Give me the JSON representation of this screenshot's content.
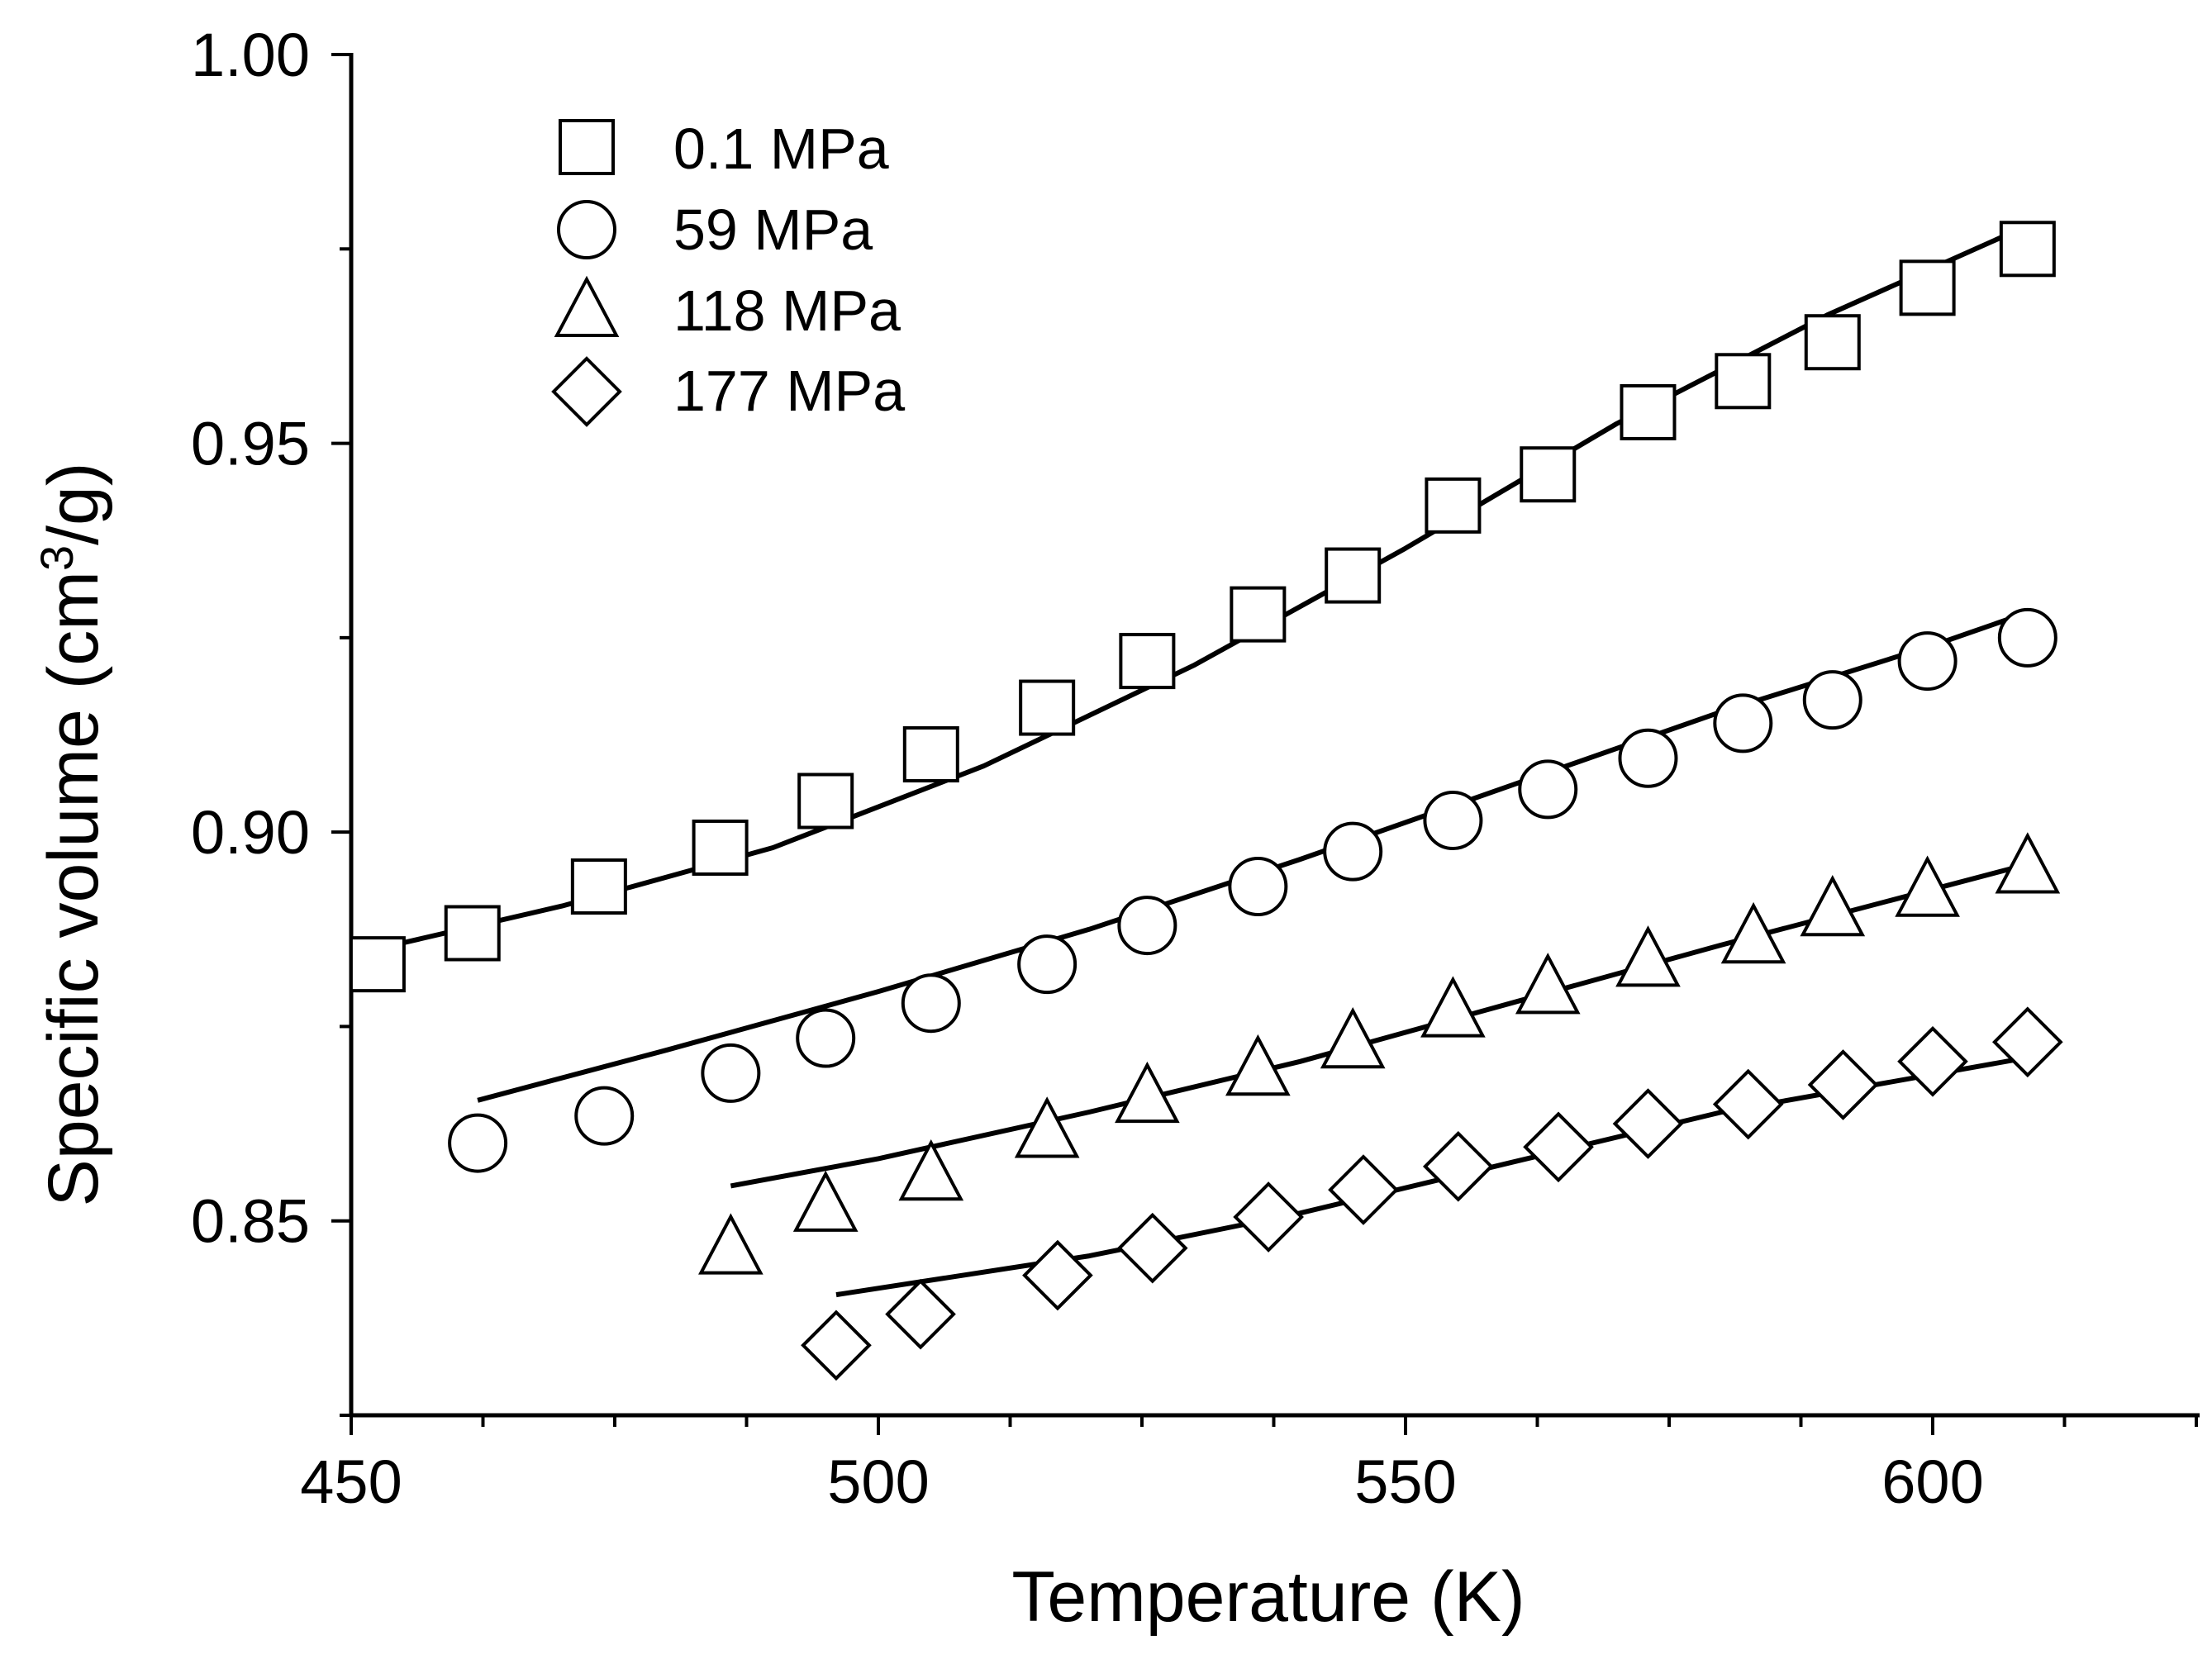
{
  "chart_data": {
    "type": "scatter",
    "xlabel": "Temperature (K)",
    "ylabel_main": "Specific volume (cm",
    "ylabel_sup": "3",
    "ylabel_tail": "/g)",
    "xlim": [
      450,
      625
    ],
    "ylim": [
      0.825,
      1.0
    ],
    "xticks": [
      450,
      500,
      550,
      600
    ],
    "xtick_labels": [
      "450",
      "500",
      "550",
      "600"
    ],
    "yticks": [
      0.85,
      0.9,
      0.95,
      1.0
    ],
    "ytick_labels": [
      "0.85",
      "0.90",
      "0.95",
      "1.00"
    ],
    "legend_position": "top-left",
    "series": [
      {
        "name": "0.1 MPa",
        "marker": "square",
        "x": [
          452.5,
          461.5,
          473.5,
          485,
          495,
          505,
          516,
          525.5,
          536,
          545,
          554.5,
          563.5,
          573,
          582,
          590.5,
          599.5,
          609
        ],
        "y": [
          0.883,
          0.887,
          0.893,
          0.898,
          0.904,
          0.91,
          0.916,
          0.922,
          0.928,
          0.933,
          0.942,
          0.946,
          0.954,
          0.958,
          0.963,
          0.97,
          0.975
        ],
        "fit": [
          [
            452.5,
            0.885
          ],
          [
            470,
            0.8905
          ],
          [
            490,
            0.898
          ],
          [
            510,
            0.9085
          ],
          [
            530,
            0.9215
          ],
          [
            550,
            0.9365
          ],
          [
            570,
            0.9525
          ],
          [
            590,
            0.9665
          ],
          [
            609,
            0.978
          ]
        ]
      },
      {
        "name": "59 MPa",
        "marker": "circle",
        "x": [
          462,
          474,
          486,
          495,
          505,
          516,
          525.5,
          536,
          545,
          554.5,
          563.5,
          573,
          582,
          590.5,
          599.5,
          609
        ],
        "y": [
          0.86,
          0.8635,
          0.869,
          0.8735,
          0.878,
          0.883,
          0.888,
          0.893,
          0.8975,
          0.9015,
          0.9055,
          0.9095,
          0.914,
          0.917,
          0.922,
          0.925
        ],
        "fit": [
          [
            462,
            0.8655
          ],
          [
            480,
            0.872
          ],
          [
            500,
            0.8795
          ],
          [
            520,
            0.8875
          ],
          [
            540,
            0.8965
          ],
          [
            560,
            0.906
          ],
          [
            580,
            0.9155
          ],
          [
            600,
            0.924
          ],
          [
            608.5,
            0.928
          ]
        ]
      },
      {
        "name": "118 MPa",
        "marker": "triangle",
        "x": [
          486,
          495,
          505,
          516,
          525.5,
          536,
          545,
          554.5,
          563.5,
          573,
          583,
          590.5,
          599.5,
          609
        ],
        "y": [
          0.8465,
          0.852,
          0.856,
          0.8615,
          0.866,
          0.8695,
          0.873,
          0.877,
          0.88,
          0.8835,
          0.8865,
          0.89,
          0.8925,
          0.8955
        ],
        "fit": [
          [
            486,
            0.8545
          ],
          [
            500,
            0.858
          ],
          [
            520,
            0.864
          ],
          [
            540,
            0.8705
          ],
          [
            560,
            0.878
          ],
          [
            580,
            0.8855
          ],
          [
            608,
            0.8955
          ]
        ]
      },
      {
        "name": "177 MPa",
        "marker": "diamond",
        "x": [
          496,
          504,
          517,
          526,
          537,
          546,
          555,
          564.5,
          573,
          582.5,
          591.5,
          600,
          609
        ],
        "y": [
          0.834,
          0.838,
          0.843,
          0.8465,
          0.8505,
          0.854,
          0.857,
          0.8595,
          0.8625,
          0.865,
          0.8675,
          0.8705,
          0.873
        ],
        "fit": [
          [
            496,
            0.8405
          ],
          [
            520,
            0.8455
          ],
          [
            540,
            0.851
          ],
          [
            560,
            0.8575
          ],
          [
            580,
            0.864
          ],
          [
            609,
            0.871
          ]
        ]
      }
    ]
  },
  "colors": {
    "ink": "#000000",
    "background": "#ffffff"
  }
}
